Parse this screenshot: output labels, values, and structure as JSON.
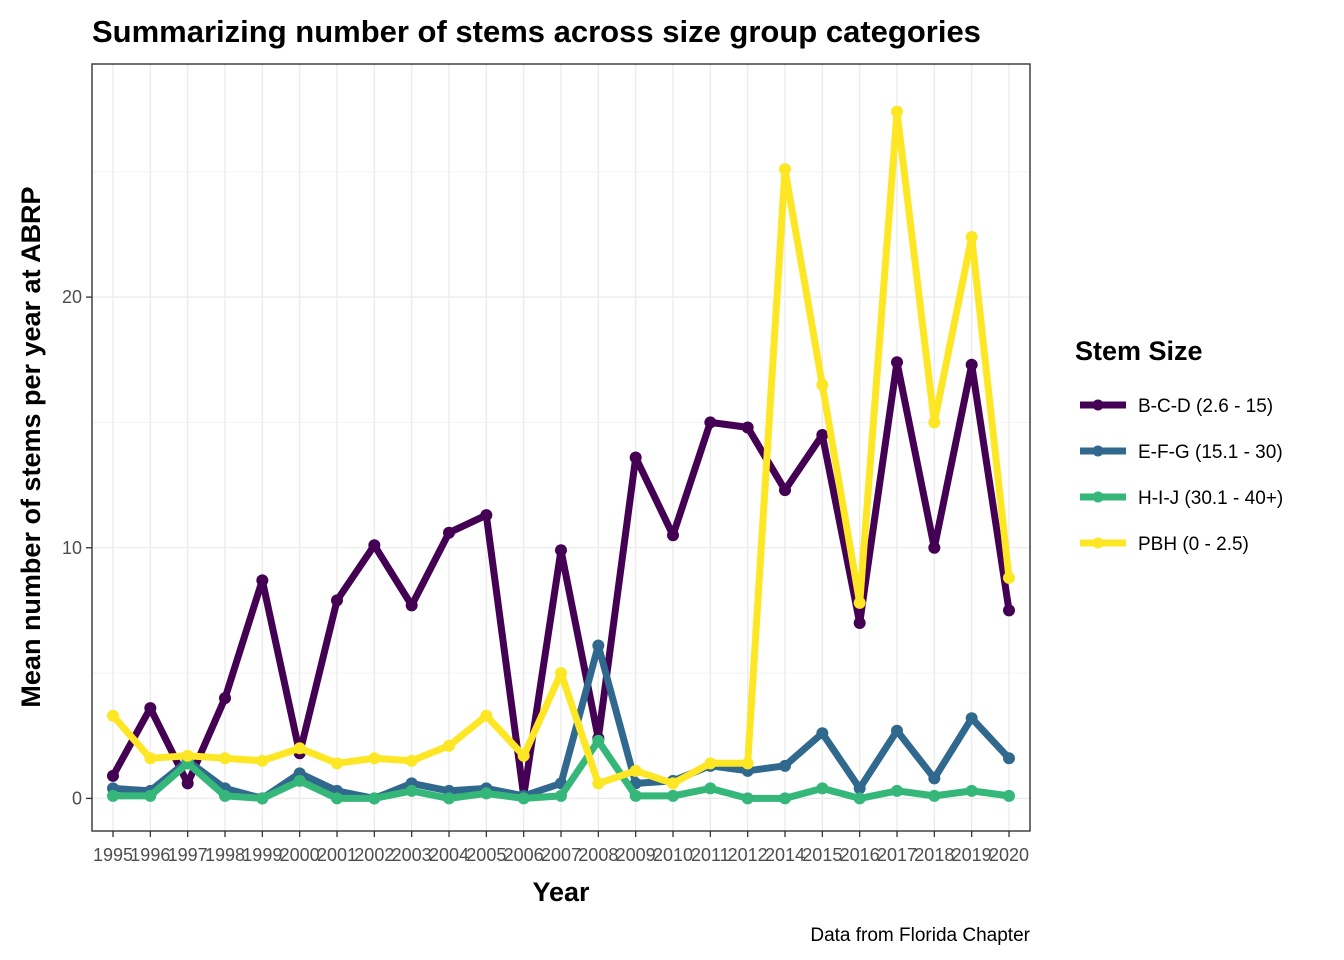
{
  "chart_data": {
    "type": "line",
    "title": "Summarizing number of stems across size group categories",
    "xlabel": "Year",
    "ylabel": "Mean number of stems per year at ABRP",
    "caption": "Data from Florida Chapter",
    "x": [
      "1995",
      "1996",
      "1997",
      "1998",
      "1999",
      "2000",
      "2001",
      "2002",
      "2003",
      "2004",
      "2005",
      "2006",
      "2007",
      "2008",
      "2009",
      "2010",
      "2011",
      "2012",
      "2014",
      "2015",
      "2016",
      "2017",
      "2018",
      "2019",
      "2020"
    ],
    "yticks": [
      0,
      10,
      20
    ],
    "ylim": [
      -1.3,
      29.3
    ],
    "grid": true,
    "legend": {
      "title": "Stem Size",
      "position": "right"
    },
    "series": [
      {
        "name": "B-C-D (2.6 - 15)",
        "color": "#440154",
        "values": [
          0.9,
          3.6,
          0.6,
          4.0,
          8.7,
          1.8,
          7.9,
          10.1,
          7.7,
          10.6,
          11.3,
          0.1,
          9.9,
          2.4,
          13.6,
          10.5,
          15.0,
          14.8,
          12.3,
          14.5,
          7.0,
          17.4,
          10.0,
          17.3,
          7.5
        ]
      },
      {
        "name": "E-F-G (15.1 - 30)",
        "color": "#31688E",
        "values": [
          0.4,
          0.3,
          1.5,
          0.4,
          0.0,
          1.0,
          0.3,
          0.0,
          0.6,
          0.3,
          0.4,
          0.1,
          0.6,
          6.1,
          0.6,
          0.7,
          1.3,
          1.1,
          1.3,
          2.6,
          0.4,
          2.7,
          0.8,
          3.2,
          1.6
        ]
      },
      {
        "name": "H-I-J (30.1 - 40+)",
        "color": "#35B779",
        "values": [
          0.1,
          0.1,
          1.4,
          0.1,
          0.0,
          0.7,
          0.0,
          0.0,
          0.3,
          0.0,
          0.2,
          0.0,
          0.1,
          2.3,
          0.1,
          0.1,
          0.4,
          0.0,
          0.0,
          0.4,
          0.0,
          0.3,
          0.1,
          0.3,
          0.1
        ]
      },
      {
        "name": "PBH (0 - 2.5)",
        "color": "#FDE725",
        "values": [
          3.3,
          1.6,
          1.7,
          1.6,
          1.5,
          2.0,
          1.4,
          1.6,
          1.5,
          2.1,
          3.3,
          1.7,
          5.0,
          0.6,
          1.1,
          0.6,
          1.4,
          1.4,
          25.1,
          16.5,
          7.8,
          27.4,
          15.0,
          22.4,
          8.8
        ]
      }
    ]
  }
}
